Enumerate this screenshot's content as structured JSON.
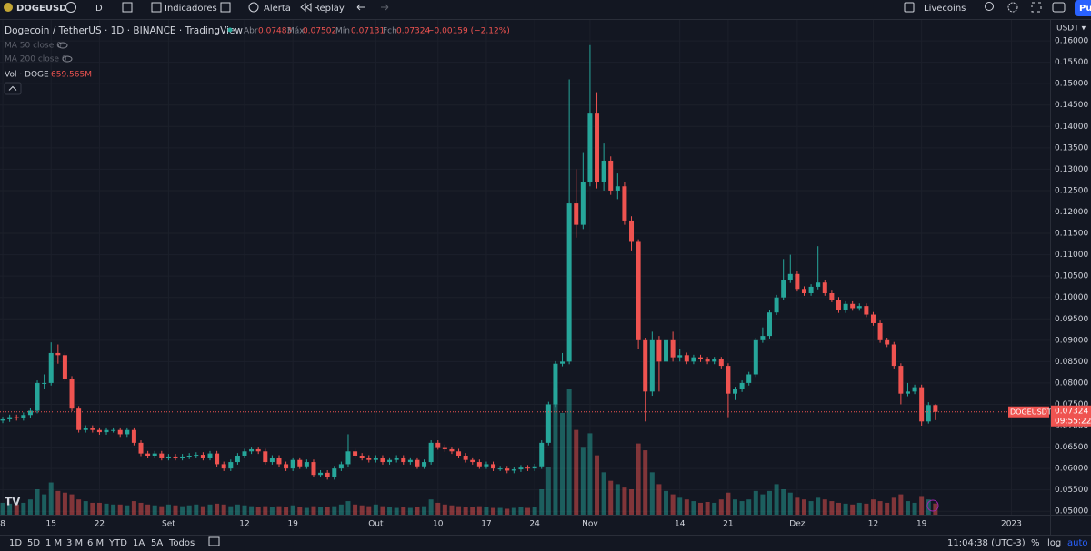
{
  "toolbar": {
    "symbol": "DOGEUSD",
    "interval": "D",
    "indicators": "Indicadores",
    "alert": "Alerta",
    "replay": "Replay",
    "account": "Livecoins",
    "publish": "Pu"
  },
  "legend": {
    "title": "Dogecoin / TetherUS · 1D · BINANCE · TradingView",
    "open": "Abr",
    "high": "Máx",
    "low": "Mín",
    "close": "Fch",
    "change": "−0.00159 (−2.12%)",
    "ma50": "MA 50 close 0",
    "ma200": "MA 200 close 0",
    "vol": "Vol · DOGE",
    "vol_value": "659.565M"
  },
  "chart_data": {
    "type": "candlestick",
    "symbol_tag": "DOGEUSDT",
    "countdown": "09:55:22",
    "currency": "USDT ▾",
    "up_color": "#26a69a",
    "down_color": "#ef5350",
    "grid": true,
    "xlim": [
      -0.4,
      151.6
    ],
    "ylim": [
      0.0492,
      0.1649
    ],
    "xticks": [
      {
        "value": 0,
        "label": "8"
      },
      {
        "value": 7,
        "label": "15"
      },
      {
        "value": 14,
        "label": "22"
      },
      {
        "value": 24,
        "label": "Set"
      },
      {
        "value": 35,
        "label": "12"
      },
      {
        "value": 42,
        "label": "19"
      },
      {
        "value": 54,
        "label": "Out"
      },
      {
        "value": 63,
        "label": "10"
      },
      {
        "value": 70,
        "label": "17"
      },
      {
        "value": 77,
        "label": "24"
      },
      {
        "value": 85,
        "label": "Nov"
      },
      {
        "value": 98,
        "label": "14"
      },
      {
        "value": 105,
        "label": "21"
      },
      {
        "value": 115,
        "label": "Dez"
      },
      {
        "value": 126,
        "label": "12"
      },
      {
        "value": 133,
        "label": "19"
      },
      {
        "value": 146,
        "label": "2023"
      }
    ],
    "yticks": [
      {
        "value": 0.05,
        "label": "0.05000"
      },
      {
        "value": 0.055,
        "label": "0.05500"
      },
      {
        "value": 0.06,
        "label": "0.06000"
      },
      {
        "value": 0.065,
        "label": "0.06500"
      },
      {
        "value": 0.07,
        "label": "0.07000"
      },
      {
        "value": 0.075,
        "label": "0.07500"
      },
      {
        "value": 0.08,
        "label": "0.08000"
      },
      {
        "value": 0.085,
        "label": "0.08500"
      },
      {
        "value": 0.09,
        "label": "0.09000"
      },
      {
        "value": 0.095,
        "label": "0.09500"
      },
      {
        "value": 0.1,
        "label": "0.10000"
      },
      {
        "value": 0.105,
        "label": "0.10500"
      },
      {
        "value": 0.11,
        "label": "0.11000"
      },
      {
        "value": 0.115,
        "label": "0.11500"
      },
      {
        "value": 0.12,
        "label": "0.12000"
      },
      {
        "value": 0.125,
        "label": "0.12500"
      },
      {
        "value": 0.13,
        "label": "0.13000"
      },
      {
        "value": 0.135,
        "label": "0.13500"
      },
      {
        "value": 0.14,
        "label": "0.14000"
      },
      {
        "value": 0.145,
        "label": "0.14500"
      },
      {
        "value": 0.15,
        "label": "0.15000"
      },
      {
        "value": 0.155,
        "label": "0.15500"
      },
      {
        "value": 0.16,
        "label": "0.16000"
      }
    ],
    "open": [
      0.0712,
      0.0715,
      0.072,
      0.0718,
      0.0725,
      0.0735,
      0.08,
      0.08,
      0.087,
      0.0865,
      0.081,
      0.074,
      0.069,
      0.0695,
      0.069,
      0.0685,
      0.069,
      0.069,
      0.068,
      0.069,
      0.066,
      0.0635,
      0.063,
      0.0635,
      0.0625,
      0.0628,
      0.0625,
      0.0628,
      0.063,
      0.0632,
      0.0625,
      0.0635,
      0.061,
      0.06,
      0.0615,
      0.063,
      0.064,
      0.0645,
      0.064,
      0.0615,
      0.0625,
      0.061,
      0.06,
      0.062,
      0.0605,
      0.0615,
      0.0585,
      0.059,
      0.058,
      0.06,
      0.061,
      0.064,
      0.063,
      0.0625,
      0.062,
      0.0625,
      0.0615,
      0.062,
      0.0625,
      0.0615,
      0.062,
      0.0605,
      0.0615,
      0.066,
      0.065,
      0.0645,
      0.064,
      0.063,
      0.062,
      0.0615,
      0.0605,
      0.061,
      0.06,
      0.06,
      0.0595,
      0.0598,
      0.0602,
      0.06,
      0.0605,
      0.066,
      0.075,
      0.0845,
      0.085,
      0.122,
      0.117,
      0.127,
      0.143,
      0.127,
      0.132,
      0.125,
      0.126,
      0.118,
      0.113,
      0.09,
      0.078,
      0.09,
      0.085,
      0.09,
      0.086,
      0.0865,
      0.085,
      0.086,
      0.0855,
      0.085,
      0.0855,
      0.084,
      0.0775,
      0.0785,
      0.08,
      0.082,
      0.09,
      0.091,
      0.0965,
      0.1,
      0.104,
      0.1055,
      0.102,
      0.101,
      0.1025,
      0.1035,
      0.101,
      0.0995,
      0.097,
      0.0985,
      0.0975,
      0.098,
      0.096,
      0.094,
      0.09,
      0.089,
      0.084,
      0.0775,
      0.078,
      0.079,
      0.071,
      0.07483
    ],
    "high": [
      0.0721,
      0.0726,
      0.0726,
      0.0731,
      0.0741,
      0.0806,
      0.082,
      0.0895,
      0.089,
      0.0871,
      0.0816,
      0.0746,
      0.0701,
      0.0701,
      0.0696,
      0.0696,
      0.0696,
      0.0696,
      0.0696,
      0.0696,
      0.0666,
      0.0641,
      0.0641,
      0.0641,
      0.0634,
      0.0634,
      0.0634,
      0.0636,
      0.0638,
      0.0638,
      0.0641,
      0.0641,
      0.0616,
      0.0621,
      0.0636,
      0.0646,
      0.0651,
      0.0651,
      0.0646,
      0.0631,
      0.0631,
      0.0616,
      0.0626,
      0.0626,
      0.0621,
      0.0621,
      0.0596,
      0.0596,
      0.0606,
      0.0616,
      0.068,
      0.0646,
      0.0636,
      0.0631,
      0.0631,
      0.0631,
      0.0626,
      0.0631,
      0.0631,
      0.0626,
      0.0626,
      0.0621,
      0.0666,
      0.0666,
      0.0656,
      0.0651,
      0.0646,
      0.0636,
      0.0626,
      0.0621,
      0.0616,
      0.0616,
      0.0606,
      0.0606,
      0.0604,
      0.0608,
      0.0608,
      0.0611,
      0.0666,
      0.0756,
      0.0851,
      0.087,
      0.151,
      0.13,
      0.134,
      0.159,
      0.148,
      0.136,
      0.133,
      0.129,
      0.127,
      0.119,
      0.1136,
      0.0906,
      0.092,
      0.091,
      0.092,
      0.092,
      0.088,
      0.0871,
      0.0866,
      0.0866,
      0.0861,
      0.0861,
      0.0861,
      0.0846,
      0.0791,
      0.0806,
      0.0826,
      0.0906,
      0.093,
      0.0971,
      0.1006,
      0.109,
      0.11,
      0.1061,
      0.1026,
      0.1031,
      0.112,
      0.1041,
      0.1016,
      0.1001,
      0.0991,
      0.0991,
      0.0986,
      0.0986,
      0.0966,
      0.0946,
      0.0906,
      0.0896,
      0.0846,
      0.08,
      0.0796,
      0.0796,
      0.0755,
      0.07502
    ],
    "low": [
      0.0706,
      0.0709,
      0.0712,
      0.0712,
      0.0719,
      0.0729,
      0.0785,
      0.0794,
      0.0845,
      0.0804,
      0.0734,
      0.0684,
      0.0684,
      0.0684,
      0.0679,
      0.0679,
      0.0684,
      0.0674,
      0.0674,
      0.0654,
      0.0629,
      0.0624,
      0.0624,
      0.0619,
      0.0619,
      0.0619,
      0.0619,
      0.0622,
      0.0624,
      0.0619,
      0.0619,
      0.0604,
      0.0594,
      0.0594,
      0.0609,
      0.0624,
      0.0634,
      0.0634,
      0.0609,
      0.0609,
      0.0604,
      0.0594,
      0.0594,
      0.0599,
      0.0599,
      0.0579,
      0.0579,
      0.0574,
      0.0574,
      0.0594,
      0.0604,
      0.0624,
      0.0619,
      0.0614,
      0.0614,
      0.0609,
      0.0609,
      0.0614,
      0.0609,
      0.0609,
      0.0599,
      0.0599,
      0.0609,
      0.0644,
      0.0639,
      0.0634,
      0.0624,
      0.0614,
      0.0609,
      0.0599,
      0.0599,
      0.0594,
      0.0594,
      0.0589,
      0.0589,
      0.0592,
      0.0594,
      0.0594,
      0.0599,
      0.0654,
      0.0744,
      0.0839,
      0.0844,
      0.114,
      0.116,
      0.126,
      0.1255,
      0.125,
      0.124,
      0.123,
      0.117,
      0.111,
      0.088,
      0.071,
      0.077,
      0.078,
      0.0844,
      0.085,
      0.085,
      0.0844,
      0.0844,
      0.0849,
      0.0844,
      0.0844,
      0.0834,
      0.072,
      0.076,
      0.0779,
      0.0794,
      0.0814,
      0.0894,
      0.0904,
      0.0959,
      0.0994,
      0.1034,
      0.1014,
      0.1004,
      0.1004,
      0.1019,
      0.1004,
      0.0989,
      0.0964,
      0.0964,
      0.0969,
      0.0969,
      0.0954,
      0.0934,
      0.0894,
      0.0884,
      0.0834,
      0.075,
      0.0769,
      0.0774,
      0.07,
      0.0705,
      0.07131
    ],
    "close": [
      0.0715,
      0.072,
      0.0718,
      0.0725,
      0.0735,
      0.08,
      0.08,
      0.087,
      0.0865,
      0.081,
      0.074,
      0.069,
      0.0695,
      0.069,
      0.0685,
      0.069,
      0.069,
      0.068,
      0.069,
      0.066,
      0.0635,
      0.063,
      0.0635,
      0.0625,
      0.0628,
      0.0625,
      0.0628,
      0.063,
      0.0632,
      0.0625,
      0.0635,
      0.061,
      0.06,
      0.0615,
      0.063,
      0.064,
      0.0645,
      0.064,
      0.0615,
      0.0625,
      0.061,
      0.06,
      0.062,
      0.0605,
      0.0615,
      0.0585,
      0.059,
      0.058,
      0.06,
      0.061,
      0.064,
      0.063,
      0.0625,
      0.062,
      0.0625,
      0.0615,
      0.062,
      0.0625,
      0.0615,
      0.062,
      0.0605,
      0.0615,
      0.066,
      0.065,
      0.0645,
      0.064,
      0.063,
      0.062,
      0.0615,
      0.0605,
      0.061,
      0.06,
      0.06,
      0.0595,
      0.0598,
      0.0602,
      0.06,
      0.0605,
      0.066,
      0.075,
      0.0845,
      0.085,
      0.122,
      0.117,
      0.127,
      0.143,
      0.127,
      0.132,
      0.125,
      0.126,
      0.118,
      0.113,
      0.09,
      0.078,
      0.09,
      0.085,
      0.09,
      0.086,
      0.0865,
      0.085,
      0.086,
      0.0855,
      0.085,
      0.0855,
      0.084,
      0.0775,
      0.0785,
      0.08,
      0.082,
      0.09,
      0.091,
      0.0965,
      0.1,
      0.104,
      0.1055,
      0.102,
      0.101,
      0.1025,
      0.1035,
      0.101,
      0.0995,
      0.097,
      0.0985,
      0.0975,
      0.098,
      0.096,
      0.094,
      0.09,
      0.089,
      0.084,
      0.0775,
      0.078,
      0.079,
      0.071,
      0.07483,
      0.07324
    ],
    "volume": [
      700,
      650,
      600,
      700,
      900,
      1500,
      1200,
      1900,
      1400,
      1300,
      1200,
      900,
      800,
      700,
      700,
      650,
      600,
      600,
      550,
      800,
      700,
      600,
      550,
      500,
      600,
      550,
      500,
      550,
      600,
      500,
      600,
      650,
      600,
      500,
      600,
      550,
      500,
      450,
      500,
      450,
      500,
      450,
      550,
      450,
      400,
      500,
      450,
      450,
      500,
      600,
      800,
      600,
      550,
      500,
      600,
      500,
      450,
      400,
      450,
      400,
      450,
      500,
      900,
      700,
      600,
      550,
      500,
      450,
      450,
      500,
      450,
      400,
      400,
      350,
      400,
      450,
      400,
      450,
      1500,
      2800,
      7500,
      6000,
      7400,
      5000,
      4000,
      4800,
      3500,
      2500,
      2000,
      1800,
      1600,
      1500,
      4200,
      3800,
      2500,
      1800,
      1400,
      1200,
      1000,
      900,
      800,
      700,
      750,
      700,
      900,
      1300,
      900,
      800,
      900,
      1400,
      1200,
      1400,
      1800,
      1500,
      1300,
      1000,
      900,
      800,
      1000,
      900,
      800,
      700,
      650,
      600,
      700,
      650,
      900,
      800,
      700,
      1000,
      1200,
      800,
      700,
      1100,
      900,
      659.565
    ]
  },
  "bottom_bar": {
    "ranges": [
      "1D",
      "5D",
      "1 M",
      "3 M",
      "6 M",
      "YTD",
      "1A",
      "5A",
      "Todos"
    ],
    "clock": "11:04:38 (UTC-3)",
    "percent": "%",
    "log": "log",
    "auto": "auto"
  }
}
